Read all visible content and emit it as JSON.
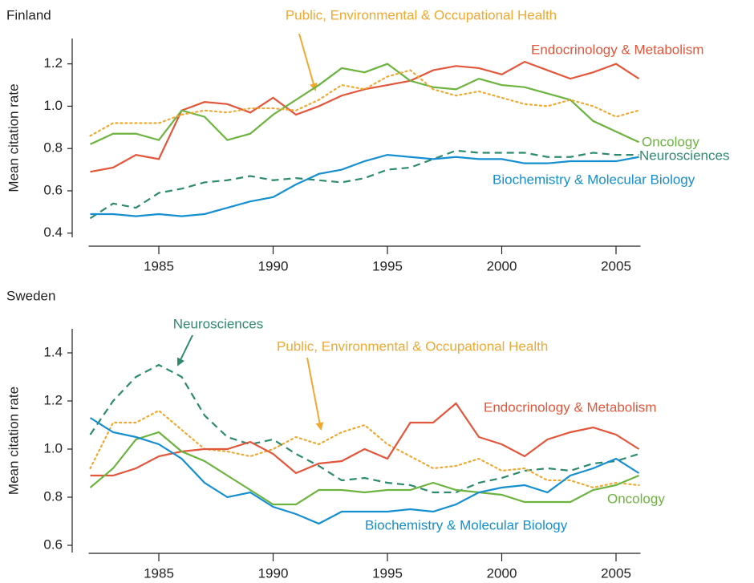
{
  "chart_data": [
    {
      "type": "line",
      "title": "Finland",
      "ylabel": "Mean citation rate",
      "x": [
        1982,
        1983,
        1984,
        1985,
        1986,
        1987,
        1988,
        1989,
        1990,
        1991,
        1992,
        1993,
        1994,
        1995,
        1996,
        1997,
        1998,
        1999,
        2000,
        2001,
        2002,
        2003,
        2004,
        2005,
        2006
      ],
      "xlim": [
        1982,
        2006
      ],
      "xticks": [
        1985,
        1990,
        1995,
        2000,
        2005
      ],
      "ylim": [
        0.38,
        1.32
      ],
      "yticks": [
        0.4,
        0.6,
        0.8,
        {
          "value": 1,
          "label": "1.0"
        },
        1.2
      ],
      "series": [
        {
          "name": "Endocrinology & Metabolism",
          "color": "#e2563b",
          "style": "solid",
          "values": [
            0.69,
            0.71,
            0.77,
            0.75,
            0.98,
            1.02,
            1.01,
            0.97,
            1.04,
            0.96,
            1.0,
            1.05,
            1.08,
            1.1,
            1.12,
            1.17,
            1.19,
            1.18,
            1.15,
            1.21,
            1.17,
            1.13,
            1.16,
            1.2,
            1.13
          ]
        },
        {
          "name": "Oncology",
          "color": "#6db33f",
          "style": "solid",
          "values": [
            0.82,
            0.87,
            0.87,
            0.84,
            0.98,
            0.95,
            0.84,
            0.87,
            0.96,
            1.03,
            1.1,
            1.18,
            1.16,
            1.2,
            1.12,
            1.09,
            1.08,
            1.13,
            1.1,
            1.09,
            1.06,
            1.03,
            0.93,
            0.88,
            0.83
          ]
        },
        {
          "name": "Public, Environmental & Occupational Health",
          "color": "#f0a830",
          "style": "dotted",
          "values": [
            0.86,
            0.92,
            0.92,
            0.92,
            0.96,
            0.98,
            0.97,
            0.99,
            0.99,
            0.98,
            1.03,
            1.1,
            1.08,
            1.14,
            1.17,
            1.08,
            1.05,
            1.07,
            1.04,
            1.01,
            1.0,
            1.03,
            1.0,
            0.95,
            0.98
          ]
        },
        {
          "name": "Neurosciences",
          "color": "#2d8a6e",
          "style": "dashed",
          "values": [
            0.47,
            0.54,
            0.52,
            0.59,
            0.61,
            0.64,
            0.65,
            0.67,
            0.65,
            0.66,
            0.65,
            0.64,
            0.66,
            0.7,
            0.71,
            0.75,
            0.79,
            0.78,
            0.78,
            0.78,
            0.76,
            0.76,
            0.78,
            0.77,
            0.77
          ]
        },
        {
          "name": "Biochemistry & Molecular Biology",
          "color": "#168fd0",
          "style": "solid",
          "values": [
            0.49,
            0.49,
            0.48,
            0.49,
            0.48,
            0.49,
            0.52,
            0.55,
            0.57,
            0.63,
            0.68,
            0.7,
            0.74,
            0.77,
            0.76,
            0.75,
            0.76,
            0.75,
            0.75,
            0.73,
            0.73,
            0.74,
            0.74,
            0.74,
            0.76
          ]
        }
      ]
    },
    {
      "type": "line",
      "title": "Sweden",
      "ylabel": "Mean citation rate",
      "x": [
        1982,
        1983,
        1984,
        1985,
        1986,
        1987,
        1988,
        1989,
        1990,
        1991,
        1992,
        1993,
        1994,
        1995,
        1996,
        1997,
        1998,
        1999,
        2000,
        2001,
        2002,
        2003,
        2004,
        2005,
        2006
      ],
      "xlim": [
        1982,
        2006
      ],
      "xticks": [
        1985,
        1990,
        1995,
        2000,
        2005
      ],
      "ylim": [
        0.57,
        1.5
      ],
      "yticks": [
        0.6,
        0.8,
        {
          "value": 1,
          "label": "1.0"
        },
        1.2,
        1.4
      ],
      "series": [
        {
          "name": "Neurosciences",
          "color": "#2d8a6e",
          "style": "dashed",
          "values": [
            1.06,
            1.2,
            1.3,
            1.35,
            1.3,
            1.14,
            1.05,
            1.02,
            1.04,
            0.98,
            0.93,
            0.87,
            0.88,
            0.86,
            0.85,
            0.82,
            0.82,
            0.86,
            0.88,
            0.91,
            0.92,
            0.91,
            0.94,
            0.95,
            0.98
          ]
        },
        {
          "name": "Public, Environmental & Occupational Health",
          "color": "#f0a830",
          "style": "dotted",
          "values": [
            0.92,
            1.11,
            1.11,
            1.16,
            1.08,
            1.0,
            0.99,
            0.97,
            1.0,
            1.05,
            1.02,
            1.07,
            1.1,
            1.02,
            0.97,
            0.92,
            0.93,
            0.96,
            0.91,
            0.92,
            0.87,
            0.87,
            0.84,
            0.86,
            0.85
          ]
        },
        {
          "name": "Endocrinology & Metabolism",
          "color": "#e2563b",
          "style": "solid",
          "values": [
            0.89,
            0.89,
            0.92,
            0.97,
            0.99,
            1.0,
            1.0,
            1.03,
            0.98,
            0.9,
            0.94,
            0.95,
            1.0,
            0.96,
            1.11,
            1.11,
            1.19,
            1.05,
            1.02,
            0.97,
            1.04,
            1.07,
            1.09,
            1.06,
            1.0
          ]
        },
        {
          "name": "Oncology",
          "color": "#6db33f",
          "style": "solid",
          "values": [
            0.84,
            0.92,
            1.04,
            1.07,
            0.99,
            0.95,
            0.89,
            0.83,
            0.77,
            0.77,
            0.83,
            0.83,
            0.82,
            0.83,
            0.83,
            0.86,
            0.83,
            0.82,
            0.81,
            0.78,
            0.78,
            0.78,
            0.83,
            0.85,
            0.89
          ]
        },
        {
          "name": "Biochemistry & Molecular Biology",
          "color": "#168fd0",
          "style": "solid",
          "values": [
            1.13,
            1.07,
            1.05,
            1.02,
            0.96,
            0.86,
            0.8,
            0.82,
            0.76,
            0.73,
            0.69,
            0.74,
            0.74,
            0.74,
            0.75,
            0.74,
            0.77,
            0.82,
            0.84,
            0.85,
            0.82,
            0.89,
            0.92,
            0.96,
            0.9
          ]
        }
      ]
    }
  ]
}
